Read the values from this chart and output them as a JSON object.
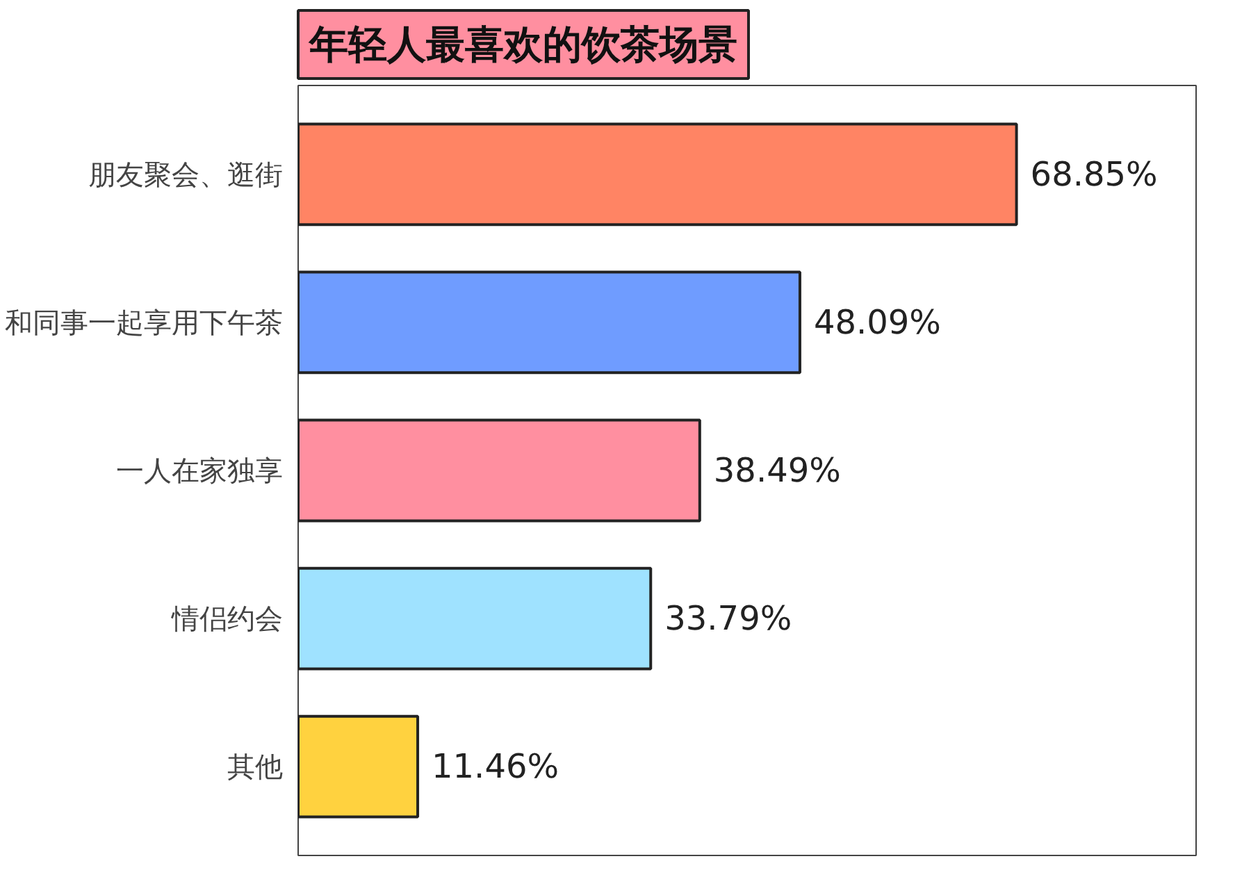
{
  "chart_data": {
    "type": "bar",
    "orientation": "horizontal",
    "title": "年轻人最喜欢的饮茶场景",
    "categories": [
      "朋友聚会、逛街",
      "和同事一起享用下午茶",
      "一人在家独享",
      "情侣约会",
      "其他"
    ],
    "values": [
      68.85,
      48.09,
      38.49,
      33.79,
      11.46
    ],
    "colors": [
      "#ff8464",
      "#6f9cff",
      "#ff8fa0",
      "#9fe2ff",
      "#ffd23f"
    ],
    "value_labels": [
      "68.85%",
      "48.09%",
      "38.49%",
      "33.79%",
      "11.46%"
    ]
  }
}
